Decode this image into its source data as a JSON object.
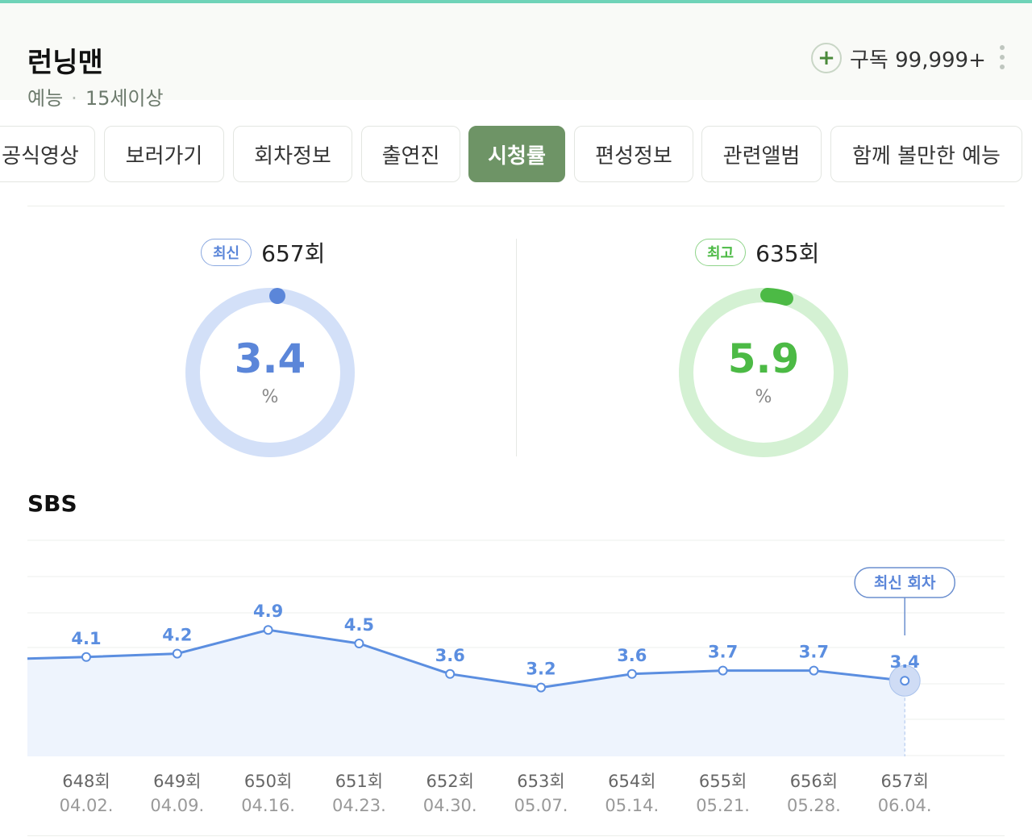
{
  "program": {
    "title": "런닝맨",
    "genre": "예능",
    "separator": "·",
    "rating": "15세이상",
    "subscribe_label": "구독 99,999+"
  },
  "icons": {
    "subscribe": "plus-icon",
    "more": "more-vertical-icon"
  },
  "tabs": [
    {
      "label": "공식영상",
      "active": false
    },
    {
      "label": "보러가기",
      "active": false
    },
    {
      "label": "회차정보",
      "active": false
    },
    {
      "label": "출연진",
      "active": false
    },
    {
      "label": "시청률",
      "active": true
    },
    {
      "label": "편성정보",
      "active": false
    },
    {
      "label": "관련앨범",
      "active": false
    },
    {
      "label": "함께 볼만한 예능",
      "active": false
    }
  ],
  "stats": {
    "latest": {
      "badge": "최신",
      "episode": "657회",
      "value": "3.4",
      "unit": "%"
    },
    "best": {
      "badge": "최고",
      "episode": "635회",
      "value": "5.9",
      "unit": "%"
    }
  },
  "colors": {
    "accent_tab": "#6e9466",
    "latest": "#5b86d9",
    "latest_track": "#d3e0f8",
    "best": "#4cba45",
    "best_track": "#d4f1d3",
    "line": "#5b8ee0",
    "area": "#eef4fd"
  },
  "broadcaster": "SBS",
  "chart_data": {
    "type": "area",
    "categories": [
      "648회",
      "649회",
      "650회",
      "651회",
      "652회",
      "653회",
      "654회",
      "655회",
      "656회",
      "657회"
    ],
    "dates": [
      "04.02.",
      "04.09.",
      "04.16.",
      "04.23.",
      "04.30.",
      "05.07.",
      "05.14.",
      "05.21.",
      "05.28.",
      "06.04."
    ],
    "values": [
      4.1,
      4.2,
      4.9,
      4.5,
      3.6,
      3.2,
      3.6,
      3.7,
      3.7,
      3.4
    ],
    "value_labels": [
      "4.1",
      "4.2",
      "4.9",
      "4.5",
      "3.6",
      "3.2",
      "3.6",
      "3.7",
      "3.7",
      "3.4"
    ],
    "highlight_label": "최신 회차",
    "highlight_index": 9,
    "grid": true,
    "legend": "none"
  }
}
